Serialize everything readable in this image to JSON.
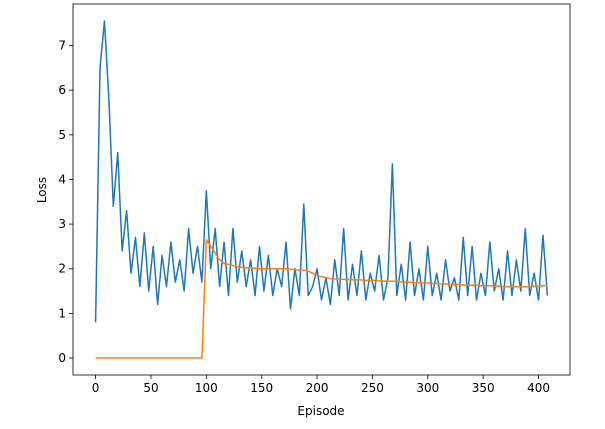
{
  "chart_data": {
    "type": "line",
    "x_label": "Episode",
    "y_label": "Loss",
    "x": [
      0,
      4,
      8,
      12,
      16,
      20,
      24,
      28,
      32,
      36,
      40,
      44,
      48,
      52,
      56,
      60,
      64,
      68,
      72,
      76,
      80,
      84,
      88,
      92,
      96,
      100,
      104,
      108,
      112,
      116,
      120,
      124,
      128,
      132,
      136,
      140,
      144,
      148,
      152,
      156,
      160,
      164,
      168,
      172,
      176,
      180,
      184,
      188,
      192,
      196,
      200,
      204,
      208,
      212,
      216,
      220,
      224,
      228,
      232,
      236,
      240,
      244,
      248,
      252,
      256,
      260,
      264,
      268,
      272,
      276,
      280,
      284,
      288,
      292,
      296,
      300,
      304,
      308,
      312,
      316,
      320,
      324,
      328,
      332,
      336,
      340,
      344,
      348,
      352,
      356,
      360,
      364,
      368,
      372,
      376,
      380,
      384,
      388,
      392,
      396,
      400,
      404,
      408
    ],
    "series": [
      {
        "color": "#1f77b4",
        "values": [
          0.8,
          6.5,
          7.55,
          5.8,
          3.4,
          4.6,
          2.4,
          3.3,
          1.9,
          2.7,
          1.6,
          2.8,
          1.5,
          2.5,
          1.2,
          2.3,
          1.6,
          2.6,
          1.7,
          2.2,
          1.5,
          2.9,
          1.9,
          2.5,
          1.7,
          3.75,
          2.0,
          2.9,
          1.6,
          2.6,
          1.4,
          2.9,
          1.7,
          2.4,
          1.6,
          2.2,
          1.4,
          2.5,
          1.5,
          2.3,
          1.4,
          2.0,
          1.6,
          2.6,
          1.1,
          2.0,
          1.4,
          3.45,
          1.4,
          1.6,
          2.0,
          1.3,
          1.8,
          1.2,
          2.2,
          1.4,
          2.9,
          1.3,
          2.1,
          1.4,
          2.4,
          1.3,
          1.9,
          1.5,
          2.3,
          1.3,
          1.8,
          4.35,
          1.4,
          2.1,
          1.3,
          2.6,
          1.4,
          2.0,
          1.3,
          2.5,
          1.4,
          1.9,
          1.3,
          2.2,
          1.5,
          1.8,
          1.3,
          2.7,
          1.4,
          2.5,
          1.3,
          1.9,
          1.4,
          2.6,
          1.5,
          2.0,
          1.3,
          2.4,
          1.4,
          2.2,
          1.5,
          2.9,
          1.4,
          1.9,
          1.3,
          2.75,
          1.4
        ]
      },
      {
        "color": "#ff7f0e",
        "values": [
          0,
          0,
          0,
          0,
          0,
          0,
          0,
          0,
          0,
          0,
          0,
          0,
          0,
          0,
          0,
          0,
          0,
          0,
          0,
          0,
          0,
          0,
          0,
          0,
          0,
          2.65,
          2.5,
          2.35,
          2.2,
          2.12,
          2.1,
          2.07,
          2.05,
          2.03,
          2.02,
          2.02,
          2.01,
          2.0,
          2.0,
          2.0,
          2.0,
          2.0,
          2.0,
          2.0,
          1.99,
          1.98,
          1.97,
          1.97,
          1.95,
          1.9,
          1.85,
          1.82,
          1.8,
          1.78,
          1.77,
          1.77,
          1.76,
          1.76,
          1.75,
          1.75,
          1.75,
          1.74,
          1.74,
          1.74,
          1.73,
          1.72,
          1.72,
          1.72,
          1.72,
          1.71,
          1.7,
          1.7,
          1.69,
          1.69,
          1.68,
          1.68,
          1.67,
          1.67,
          1.66,
          1.66,
          1.65,
          1.65,
          1.65,
          1.64,
          1.64,
          1.63,
          1.63,
          1.62,
          1.62,
          1.62,
          1.61,
          1.61,
          1.6,
          1.6,
          1.6,
          1.6,
          1.6,
          1.6,
          1.6,
          1.61,
          1.61,
          1.62,
          1.62
        ]
      }
    ],
    "xlim": [
      -20.4,
      428.4
    ],
    "ylim": [
      -0.38,
      7.93
    ],
    "xticks": [
      0,
      50,
      100,
      150,
      200,
      250,
      300,
      350,
      400
    ],
    "yticks": [
      0,
      1,
      2,
      3,
      4,
      5,
      6,
      7
    ]
  }
}
